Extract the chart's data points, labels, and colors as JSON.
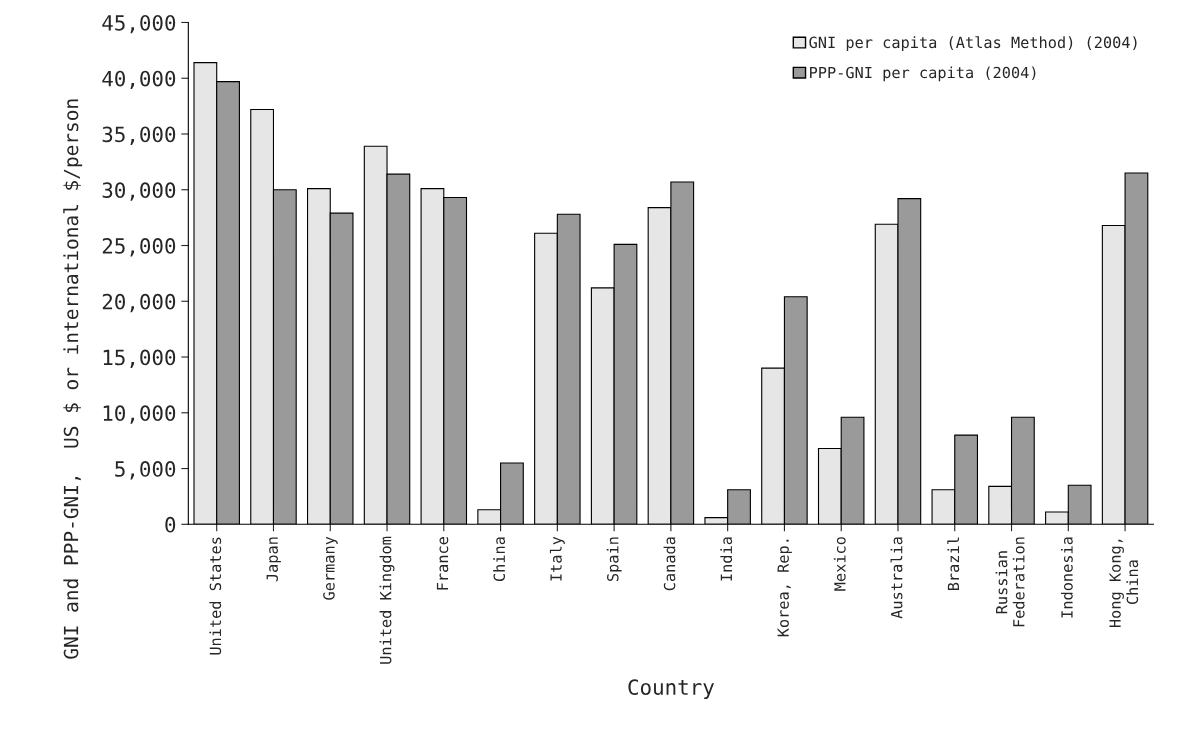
{
  "chart_data": {
    "type": "bar",
    "xlabel": "Country",
    "ylabel": "GNI and PPP-GNI,  US $ or international $/person",
    "categories": [
      "United States",
      "Japan",
      "Germany",
      "United Kingdom",
      "France",
      "China",
      "Italy",
      "Spain",
      "Canada",
      "India",
      "Korea, Rep.",
      "Mexico",
      "Australia",
      "Brazil",
      "Russian\nFederation",
      "Indonesia",
      "Hong Kong,\nChina"
    ],
    "series": [
      {
        "name": "GNI per capita (Atlas Method) (2004)",
        "color": "#e6e6e6",
        "values": [
          41400,
          37200,
          30100,
          33900,
          30100,
          1300,
          26100,
          21200,
          28400,
          600,
          14000,
          6800,
          26900,
          3100,
          3400,
          1100,
          26800
        ]
      },
      {
        "name": "PPP-GNI per capita (2004)",
        "color": "#9a9a9a",
        "values": [
          39700,
          30000,
          27900,
          31400,
          29300,
          5500,
          27800,
          25100,
          30700,
          3100,
          20400,
          9600,
          29200,
          8000,
          9600,
          3500,
          31500
        ]
      }
    ],
    "ylim": [
      0,
      45000
    ],
    "yticks": [
      0,
      {
        "value": 5000,
        "label": "5,000"
      },
      {
        "value": 10000,
        "label": "10,000"
      },
      {
        "value": 15000,
        "label": "15,000"
      },
      {
        "value": 20000,
        "label": "20,000"
      },
      {
        "value": 25000,
        "label": "25,000"
      },
      {
        "value": 30000,
        "label": "30,000"
      },
      {
        "value": 35000,
        "label": "35,000"
      },
      {
        "value": 40000,
        "label": "40,000"
      },
      {
        "value": 45000,
        "label": "45,000"
      }
    ],
    "grid": false,
    "legend": "top right"
  }
}
